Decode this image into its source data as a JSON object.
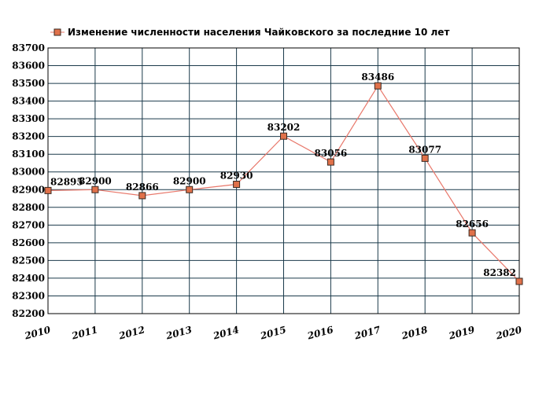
{
  "chart_data": {
    "type": "line",
    "title": "Изменение численности населения Чайковского за последние 10 лет",
    "x": [
      "2010",
      "2011",
      "2012",
      "2013",
      "2014",
      "2015",
      "2016",
      "2017",
      "2018",
      "2019",
      "2020"
    ],
    "series": [
      {
        "name": "Изменение численности населения Чайковского за последние 10 лет",
        "values": [
          82895,
          82900,
          82866,
          82900,
          82930,
          83202,
          83056,
          83486,
          83077,
          82656,
          82382
        ],
        "line_color": "#e8776a",
        "marker_color": "#e0714a"
      }
    ],
    "ylim": [
      82200,
      83700
    ],
    "y_ticks": [
      82200,
      82300,
      82400,
      82500,
      82600,
      82700,
      82800,
      82900,
      83000,
      83100,
      83200,
      83300,
      83400,
      83500,
      83600,
      83700
    ],
    "grid": true,
    "grid_color": "#1b3a4b",
    "legend": "top"
  }
}
